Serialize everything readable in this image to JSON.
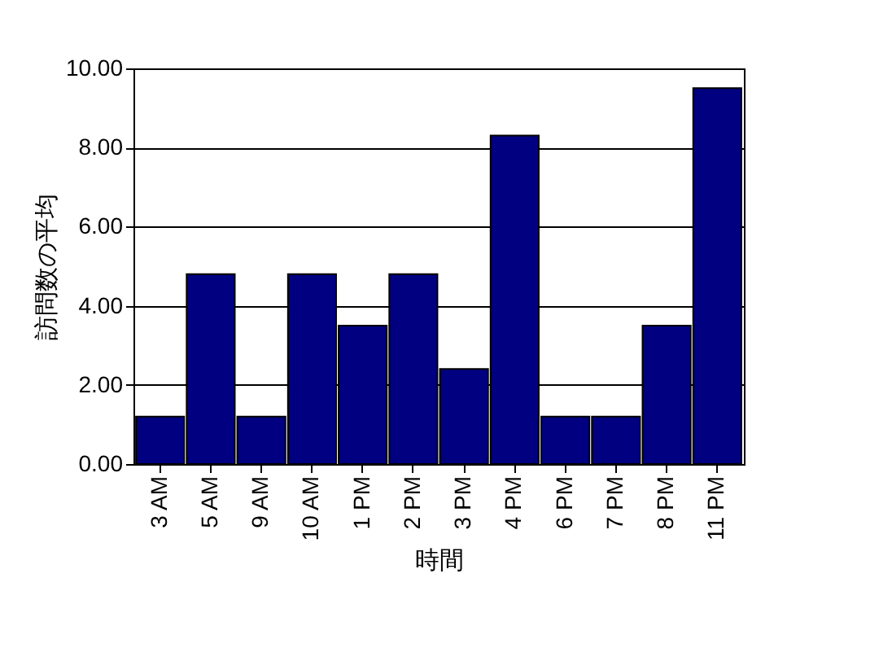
{
  "chart_data": {
    "type": "bar",
    "xlabel": "時間",
    "ylabel": "訪問数の平均",
    "categories": [
      "3 AM",
      "5 AM",
      "9 AM",
      "10 AM",
      "1 PM",
      "2 PM",
      "3 PM",
      "4 PM",
      "6 PM",
      "7 PM",
      "8 PM",
      "11 PM"
    ],
    "values": [
      1.2,
      4.8,
      1.2,
      4.8,
      3.5,
      4.8,
      2.4,
      8.3,
      1.2,
      1.2,
      3.5,
      9.5
    ],
    "color": "#000080",
    "ylim": [
      0,
      10
    ],
    "yticks": [
      {
        "value": 0,
        "label": "0.00"
      },
      {
        "value": 2,
        "label": "2.00"
      },
      {
        "value": 4,
        "label": "4.00"
      },
      {
        "value": 6,
        "label": "6.00"
      },
      {
        "value": 8,
        "label": "8.00"
      },
      {
        "value": 10,
        "label": "10.00"
      }
    ],
    "grid": "y"
  }
}
